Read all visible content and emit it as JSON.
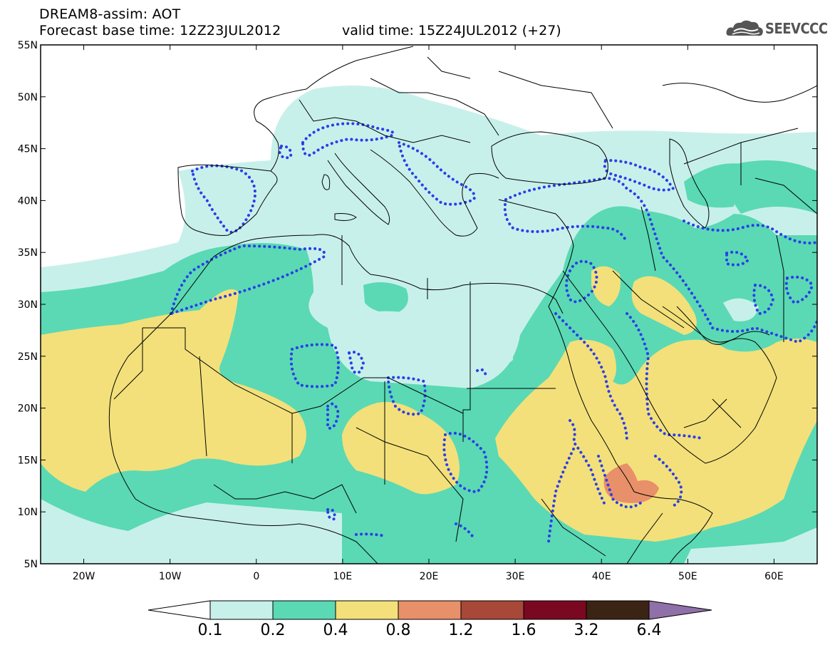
{
  "header": {
    "title": "DREAM8-assim: AOT",
    "base_time": "Forecast base time: 12Z23JUL2012",
    "valid_time": "valid time: 15Z24JUL2012 (+27)"
  },
  "logo": {
    "text": "SEEVCCC",
    "icon": "cloud-icon"
  },
  "map": {
    "lat_labels": [
      "55N",
      "50N",
      "45N",
      "40N",
      "35N",
      "30N",
      "25N",
      "20N",
      "15N",
      "10N",
      "5N"
    ],
    "lon_labels": [
      "20W",
      "10W",
      "0",
      "10E",
      "20E",
      "30E",
      "40E",
      "50E",
      "60E"
    ],
    "lon_range": [
      -25,
      65
    ],
    "lat_range": [
      5,
      55
    ],
    "dotted_contour_color": "#2a3ee8"
  },
  "colorbar": {
    "levels": [
      "0.1",
      "0.2",
      "0.4",
      "0.8",
      "1.2",
      "1.6",
      "3.2",
      "6.4"
    ],
    "colors": [
      "#c8f0ea",
      "#5ad9b4",
      "#f3e07a",
      "#e8906a",
      "#a84838",
      "#7a0820",
      "#3c2414",
      "#9070a8"
    ]
  }
}
